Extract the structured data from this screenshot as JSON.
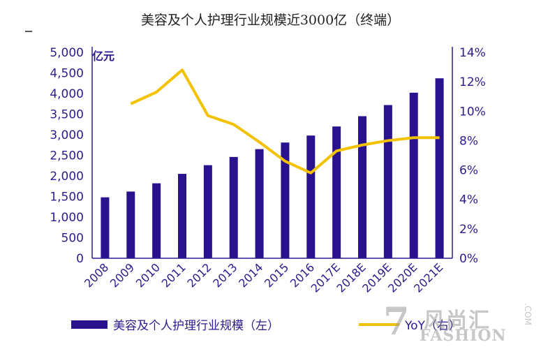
{
  "chart_data": {
    "type": "bar",
    "title": "美容及个人护理行业规模近3000亿（终端）",
    "categories": [
      "2008",
      "2009",
      "2010",
      "2011",
      "2012",
      "2013",
      "2014",
      "2015",
      "2016",
      "2017E",
      "2018E",
      "2019E",
      "2020E",
      "2021E"
    ],
    "left_unit": "亿元",
    "left_ticks": [
      "5,000",
      "4,500",
      "4,000",
      "3,500",
      "3,000",
      "2,500",
      "2,000",
      "1,500",
      "1,000",
      "500",
      "0"
    ],
    "right_ticks": [
      "14%",
      "12%",
      "10%",
      "8%",
      "6%",
      "4%",
      "2%",
      "0%"
    ],
    "ylim_left": [
      0,
      5000
    ],
    "ylim_right": [
      0,
      14
    ],
    "grid": false,
    "series": [
      {
        "name": "美容及个人护理行业规模（左）",
        "type": "bar",
        "axis": "left",
        "color": "#2a128f",
        "values": [
          1480,
          1620,
          1820,
          2050,
          2260,
          2460,
          2650,
          2810,
          2980,
          3200,
          3450,
          3720,
          4020,
          4370
        ]
      },
      {
        "name": "YoY（右）",
        "type": "line",
        "axis": "right",
        "color": "#f2c200",
        "values": [
          null,
          10.5,
          11.3,
          12.8,
          9.7,
          9.1,
          7.9,
          6.6,
          5.8,
          7.3,
          7.7,
          8.0,
          8.2,
          8.2
        ]
      }
    ]
  },
  "legend": {
    "bar_label": "美容及个人护理行业规模（左）",
    "line_label": "YoY（右）"
  },
  "watermark": {
    "number": "7",
    "cn": "风尚汇",
    "en": "FASHION",
    "com": ".COM"
  }
}
